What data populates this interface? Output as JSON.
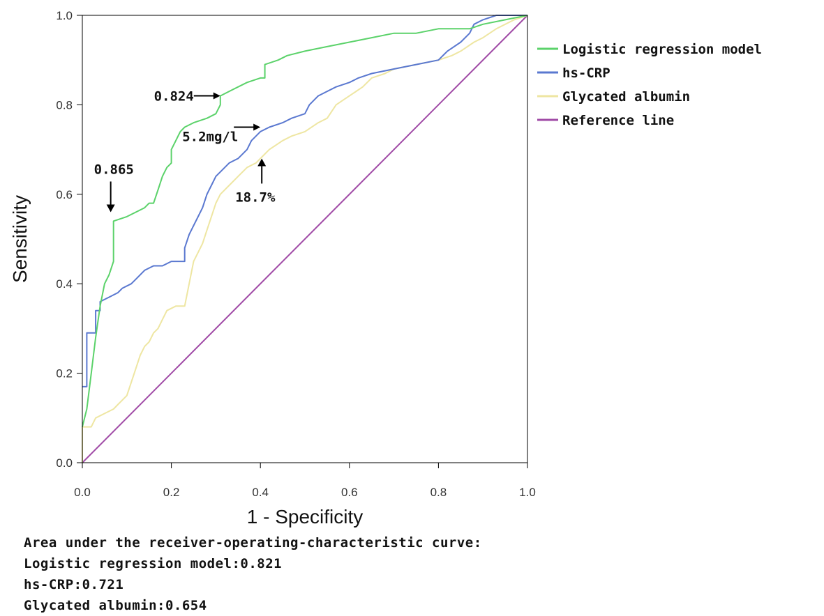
{
  "chart_data": {
    "type": "line",
    "xlabel": "1 - Specificity",
    "ylabel": "Sensitivity",
    "xlim": [
      0,
      1
    ],
    "ylim": [
      0,
      1
    ],
    "xticks": [
      "0.0",
      "0.2",
      "0.4",
      "0.6",
      "0.8",
      "1.0"
    ],
    "yticks": [
      "0.0",
      "0.2",
      "0.4",
      "0.6",
      "0.8",
      "1.0"
    ],
    "grid": false,
    "legend_position": "right",
    "series": [
      {
        "name": "Logistic regression model",
        "color": "#5bd26a",
        "points": [
          [
            0,
            0.08
          ],
          [
            0.01,
            0.12
          ],
          [
            0.02,
            0.2
          ],
          [
            0.03,
            0.28
          ],
          [
            0.04,
            0.35
          ],
          [
            0.05,
            0.4
          ],
          [
            0.06,
            0.42
          ],
          [
            0.07,
            0.45
          ],
          [
            0.07,
            0.54
          ],
          [
            0.1,
            0.55
          ],
          [
            0.12,
            0.56
          ],
          [
            0.14,
            0.57
          ],
          [
            0.15,
            0.58
          ],
          [
            0.16,
            0.58
          ],
          [
            0.17,
            0.61
          ],
          [
            0.18,
            0.64
          ],
          [
            0.19,
            0.66
          ],
          [
            0.2,
            0.67
          ],
          [
            0.2,
            0.7
          ],
          [
            0.21,
            0.72
          ],
          [
            0.22,
            0.74
          ],
          [
            0.23,
            0.75
          ],
          [
            0.25,
            0.76
          ],
          [
            0.28,
            0.77
          ],
          [
            0.3,
            0.78
          ],
          [
            0.31,
            0.8
          ],
          [
            0.31,
            0.82
          ],
          [
            0.33,
            0.83
          ],
          [
            0.37,
            0.85
          ],
          [
            0.4,
            0.86
          ],
          [
            0.41,
            0.86
          ],
          [
            0.41,
            0.89
          ],
          [
            0.44,
            0.9
          ],
          [
            0.46,
            0.91
          ],
          [
            0.5,
            0.92
          ],
          [
            0.55,
            0.93
          ],
          [
            0.6,
            0.94
          ],
          [
            0.65,
            0.95
          ],
          [
            0.7,
            0.96
          ],
          [
            0.75,
            0.96
          ],
          [
            0.8,
            0.97
          ],
          [
            0.87,
            0.97
          ],
          [
            0.9,
            0.98
          ],
          [
            0.95,
            0.99
          ],
          [
            1,
            1
          ]
        ]
      },
      {
        "name": "hs-CRP",
        "color": "#5a78d0",
        "points": [
          [
            0,
            0.17
          ],
          [
            0.01,
            0.17
          ],
          [
            0.01,
            0.29
          ],
          [
            0.03,
            0.29
          ],
          [
            0.03,
            0.34
          ],
          [
            0.04,
            0.34
          ],
          [
            0.04,
            0.36
          ],
          [
            0.06,
            0.37
          ],
          [
            0.08,
            0.38
          ],
          [
            0.09,
            0.39
          ],
          [
            0.11,
            0.4
          ],
          [
            0.12,
            0.41
          ],
          [
            0.13,
            0.42
          ],
          [
            0.14,
            0.43
          ],
          [
            0.16,
            0.44
          ],
          [
            0.18,
            0.44
          ],
          [
            0.2,
            0.45
          ],
          [
            0.23,
            0.45
          ],
          [
            0.23,
            0.48
          ],
          [
            0.24,
            0.51
          ],
          [
            0.25,
            0.53
          ],
          [
            0.26,
            0.55
          ],
          [
            0.27,
            0.57
          ],
          [
            0.28,
            0.6
          ],
          [
            0.29,
            0.62
          ],
          [
            0.3,
            0.64
          ],
          [
            0.31,
            0.65
          ],
          [
            0.33,
            0.67
          ],
          [
            0.35,
            0.68
          ],
          [
            0.37,
            0.7
          ],
          [
            0.38,
            0.72
          ],
          [
            0.4,
            0.74
          ],
          [
            0.42,
            0.75
          ],
          [
            0.45,
            0.76
          ],
          [
            0.47,
            0.77
          ],
          [
            0.5,
            0.78
          ],
          [
            0.51,
            0.8
          ],
          [
            0.53,
            0.82
          ],
          [
            0.55,
            0.83
          ],
          [
            0.57,
            0.84
          ],
          [
            0.6,
            0.85
          ],
          [
            0.62,
            0.86
          ],
          [
            0.65,
            0.87
          ],
          [
            0.7,
            0.88
          ],
          [
            0.75,
            0.89
          ],
          [
            0.8,
            0.9
          ],
          [
            0.82,
            0.92
          ],
          [
            0.85,
            0.94
          ],
          [
            0.87,
            0.96
          ],
          [
            0.88,
            0.98
          ],
          [
            0.9,
            0.99
          ],
          [
            0.93,
            1
          ],
          [
            1,
            1
          ]
        ]
      },
      {
        "name": "Glycated albumin",
        "color": "#eee6a2",
        "points": [
          [
            0,
            0
          ],
          [
            0,
            0.08
          ],
          [
            0.02,
            0.08
          ],
          [
            0.03,
            0.1
          ],
          [
            0.05,
            0.11
          ],
          [
            0.07,
            0.12
          ],
          [
            0.08,
            0.13
          ],
          [
            0.1,
            0.15
          ],
          [
            0.11,
            0.18
          ],
          [
            0.12,
            0.21
          ],
          [
            0.13,
            0.24
          ],
          [
            0.14,
            0.26
          ],
          [
            0.15,
            0.27
          ],
          [
            0.16,
            0.29
          ],
          [
            0.17,
            0.3
          ],
          [
            0.18,
            0.32
          ],
          [
            0.19,
            0.34
          ],
          [
            0.21,
            0.35
          ],
          [
            0.23,
            0.35
          ],
          [
            0.24,
            0.4
          ],
          [
            0.25,
            0.45
          ],
          [
            0.26,
            0.47
          ],
          [
            0.27,
            0.49
          ],
          [
            0.28,
            0.52
          ],
          [
            0.29,
            0.55
          ],
          [
            0.3,
            0.58
          ],
          [
            0.31,
            0.6
          ],
          [
            0.33,
            0.62
          ],
          [
            0.35,
            0.64
          ],
          [
            0.37,
            0.66
          ],
          [
            0.39,
            0.67
          ],
          [
            0.4,
            0.68
          ],
          [
            0.42,
            0.7
          ],
          [
            0.45,
            0.72
          ],
          [
            0.47,
            0.73
          ],
          [
            0.5,
            0.74
          ],
          [
            0.53,
            0.76
          ],
          [
            0.55,
            0.77
          ],
          [
            0.57,
            0.8
          ],
          [
            0.6,
            0.82
          ],
          [
            0.63,
            0.84
          ],
          [
            0.65,
            0.86
          ],
          [
            0.68,
            0.87
          ],
          [
            0.7,
            0.88
          ],
          [
            0.75,
            0.89
          ],
          [
            0.8,
            0.9
          ],
          [
            0.83,
            0.91
          ],
          [
            0.85,
            0.92
          ],
          [
            0.88,
            0.94
          ],
          [
            0.9,
            0.95
          ],
          [
            0.93,
            0.97
          ],
          [
            0.97,
            0.99
          ],
          [
            1,
            1
          ]
        ]
      },
      {
        "name": "Reference line",
        "color": "#a04aa6",
        "points": [
          [
            0,
            0
          ],
          [
            1,
            1
          ]
        ]
      }
    ],
    "annotations": [
      {
        "text": "0.824",
        "anchor": [
          0.31,
          0.82
        ],
        "arrow": "right"
      },
      {
        "text": "0.865",
        "anchor": [
          0.07,
          0.56
        ],
        "arrow": "down"
      },
      {
        "text": "5.2mg/l",
        "anchor": [
          0.4,
          0.75
        ],
        "arrow": "right"
      },
      {
        "text": "18.7%",
        "anchor": [
          0.4,
          0.68
        ],
        "arrow": "up"
      }
    ]
  },
  "auc_summary": {
    "heading": "Area under the receiver-operating-characteristic curve:",
    "lines": [
      "Logistic regression model:0.821",
      "hs-CRP:0.721",
      "Glycated albumin:0.654"
    ]
  }
}
